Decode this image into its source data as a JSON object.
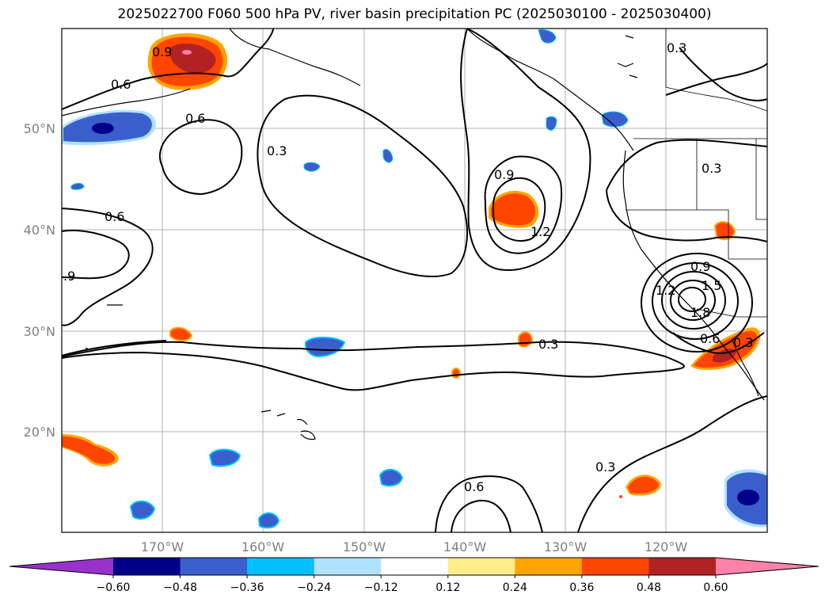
{
  "title": "2025022700 F060 500 hPa PV, river basin precipitation PC (2025030100 - 2025030400)",
  "lat_labels": [
    "50°N",
    "40°N",
    "30°N",
    "20°N"
  ],
  "lon_labels": [
    "170°W",
    "160°W",
    "150°W",
    "140°W",
    "130°W",
    "120°W"
  ],
  "contour_labels": [
    "0.9",
    "0.6",
    "0.6",
    "0.3",
    "0.6",
    ".9",
    "0.9",
    "1.2",
    "0.3",
    "0.3",
    "0.3",
    "0.6",
    "0.9",
    "1.2",
    "1.5",
    "1.8",
    "0.6",
    "0.3",
    "0.3"
  ],
  "colorbar": {
    "ticks": [
      "−0.60",
      "−0.48",
      "−0.36",
      "−0.24",
      "−0.12",
      "0.12",
      "0.24",
      "0.36",
      "0.48",
      "0.60"
    ],
    "colors": [
      "#9932cc",
      "#00008b",
      "#3a5fcd",
      "#00bfff",
      "#b0e2ff",
      "#ffffff",
      "#ffec8b",
      "#ffa500",
      "#ff4500",
      "#b22222",
      "#ff82ab"
    ]
  }
}
